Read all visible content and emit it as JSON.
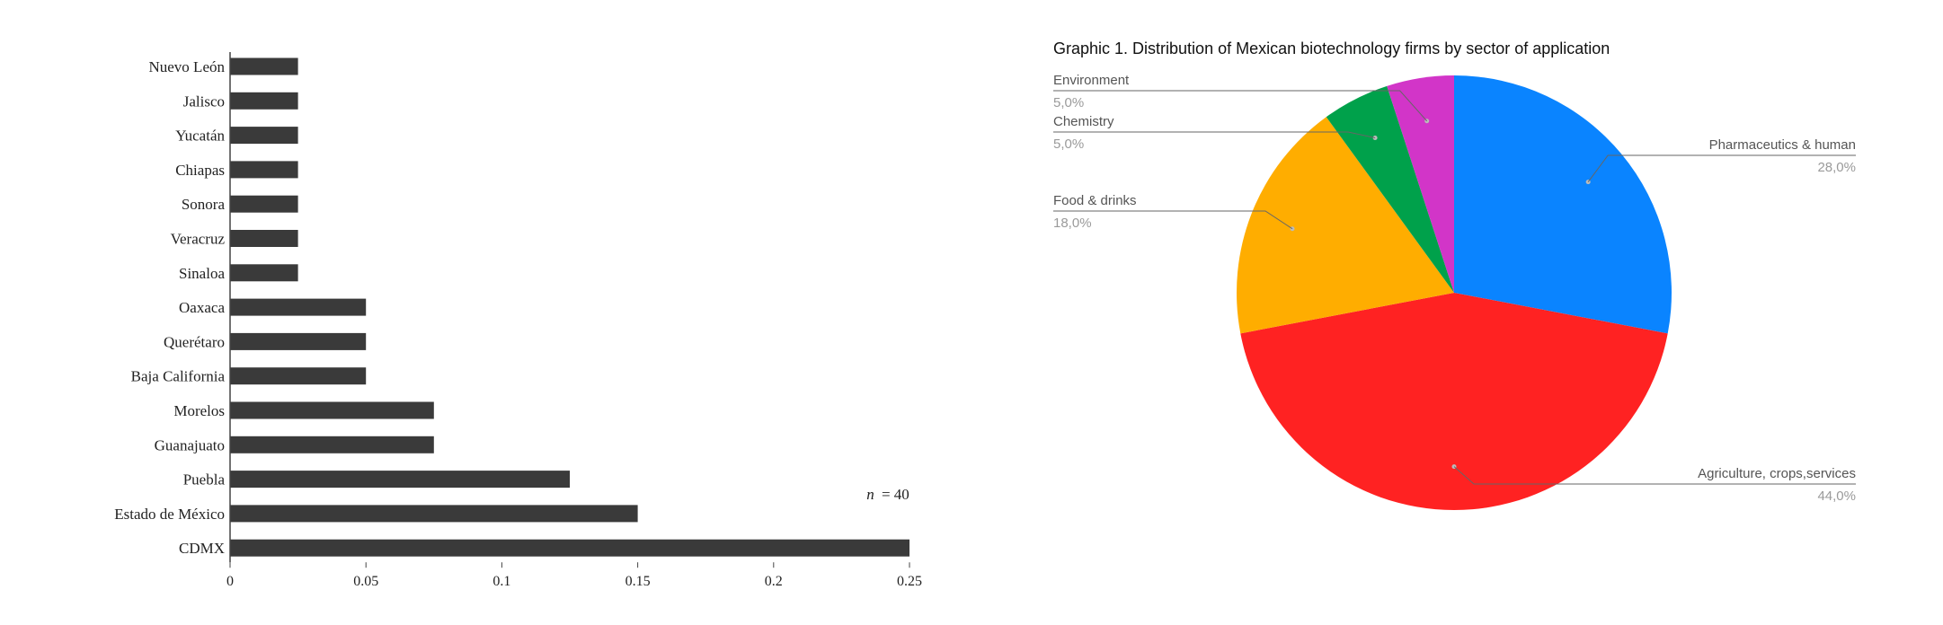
{
  "chart_data": [
    {
      "type": "bar",
      "orientation": "horizontal",
      "title": "",
      "xlabel": "",
      "ylabel": "",
      "categories": [
        "Nuevo León",
        "Jalisco",
        "Yucatán",
        "Chiapas",
        "Sonora",
        "Veracruz",
        "Sinaloa",
        "Oaxaca",
        "Querétaro",
        "Baja California",
        "Morelos",
        "Guanajuato",
        "Puebla",
        "Estado de México",
        "CDMX"
      ],
      "values": [
        0.025,
        0.025,
        0.025,
        0.025,
        0.025,
        0.025,
        0.025,
        0.05,
        0.05,
        0.05,
        0.075,
        0.075,
        0.125,
        0.15,
        0.25
      ],
      "xlim": [
        0,
        0.25
      ],
      "x_ticks": [
        "0",
        "0.05",
        "0.1",
        "0.15",
        "0.2",
        "0.25"
      ],
      "grid": false,
      "bar_color": "#3a3a3a",
      "annotation_n_label": "n",
      "annotation_n_value": "= 40"
    },
    {
      "type": "pie",
      "title": "Graphic 1. Distribution of Mexican biotechnology firms  by sector of application",
      "slices": [
        {
          "label": "Pharmaceutics & human",
          "value": 28.0,
          "display": "28,0%",
          "color": "#0a84ff"
        },
        {
          "label": "Agriculture, crops,services",
          "value": 44.0,
          "display": "44,0%",
          "color": "#ff2222"
        },
        {
          "label": "Food & drinks",
          "value": 18.0,
          "display": "18,0%",
          "color": "#ffad00"
        },
        {
          "label": "Chemistry",
          "value": 5.0,
          "display": "5,0%",
          "color": "#00a14b"
        },
        {
          "label": "Environment",
          "value": 5.0,
          "display": "5,0%",
          "color": "#d235c8"
        }
      ],
      "legend": "callout-labels"
    }
  ]
}
